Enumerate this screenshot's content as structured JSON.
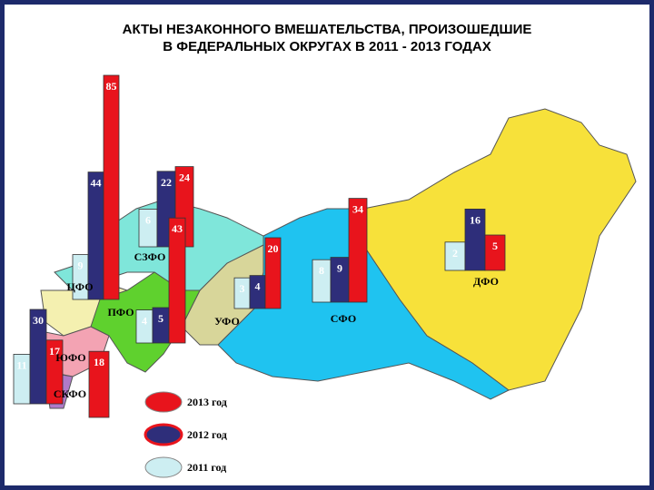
{
  "title": {
    "line1": "АКТЫ НЕЗАКОННОГО ВМЕШАТЕЛЬСТВА, ПРОИЗОШЕДШИЕ",
    "line2": "В ФЕДЕРАЛЬНЫХ ОКРУГАХ В 2011 - 2013 ГОДАХ"
  },
  "legend": [
    {
      "label": "2013 год",
      "color": "#e8141c"
    },
    {
      "label": "2012 год",
      "color": "#2e2e7a"
    },
    {
      "label": "2011 год",
      "color": "#cdeef2"
    }
  ],
  "districts": [
    {
      "name": "ЦФО",
      "values": [
        9,
        44,
        85
      ]
    },
    {
      "name": "СЗФО",
      "values": [
        6,
        22,
        24
      ]
    },
    {
      "name": "ПФО",
      "values": [
        4,
        5,
        43
      ]
    },
    {
      "name": "УФО",
      "values": [
        3,
        4,
        20
      ]
    },
    {
      "name": "СФО",
      "values": [
        8,
        9,
        34
      ]
    },
    {
      "name": "ДФО",
      "values": [
        2,
        16,
        5
      ]
    },
    {
      "name": "ЮФО",
      "values": [
        11,
        30,
        17
      ]
    },
    {
      "name": "СКФО",
      "values": [
        null,
        null,
        18
      ]
    }
  ]
}
